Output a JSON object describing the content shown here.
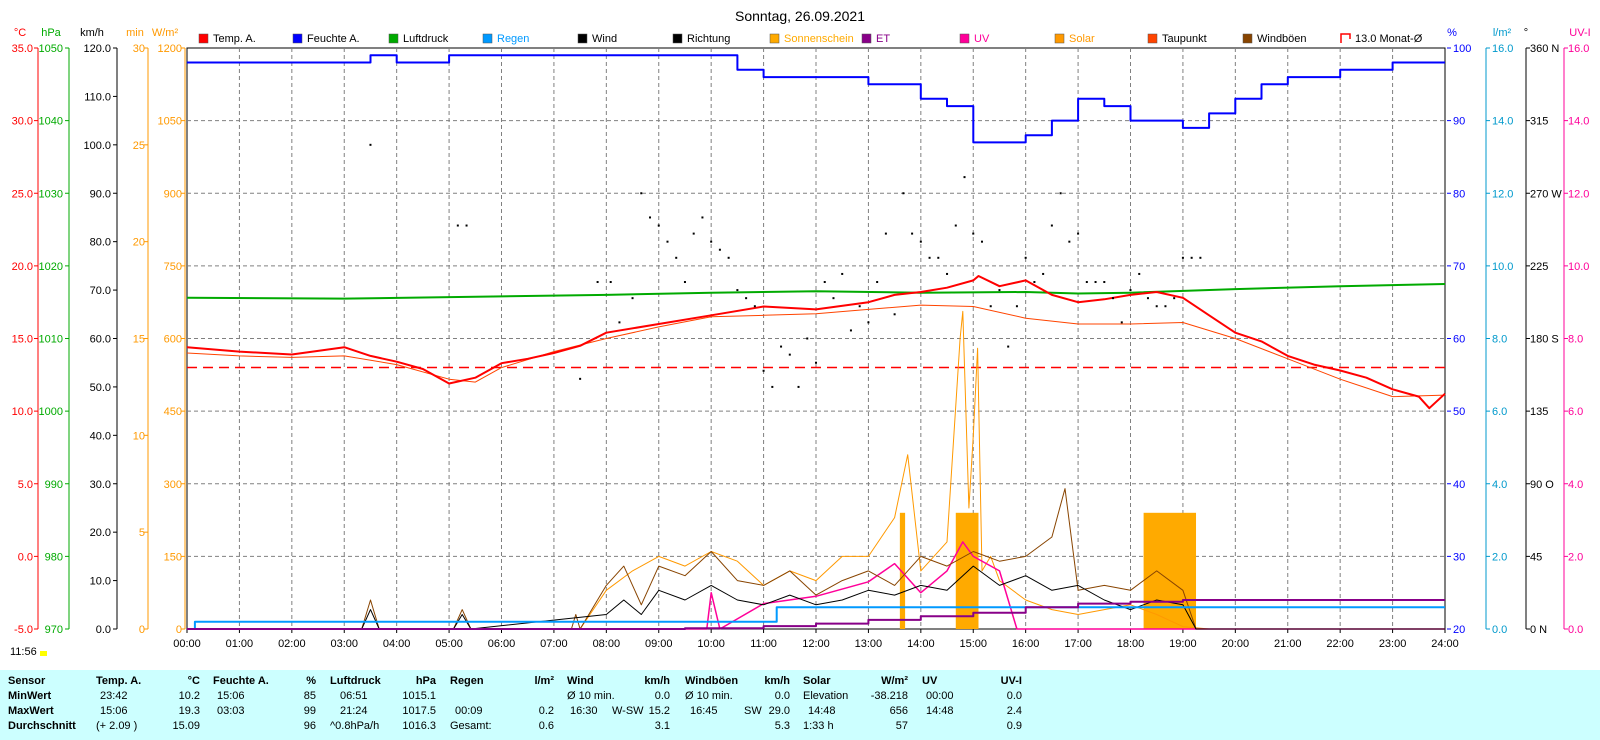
{
  "title": "Sonntag, 26.09.2021",
  "current_time": "11:56",
  "left_axes": [
    {
      "unit": "°C",
      "color": "#ff0000",
      "ticks": [
        "35.0",
        "30.0",
        "25.0",
        "20.0",
        "15.0",
        "10.0",
        "5.0",
        "0.0",
        "-5.0"
      ]
    },
    {
      "unit": "hPa",
      "color": "#00aa00",
      "ticks": [
        "1050",
        "1040",
        "1030",
        "1020",
        "1010",
        "1000",
        "990",
        "980",
        "970"
      ]
    },
    {
      "unit": "km/h",
      "color": "#000000",
      "ticks": [
        "120.0",
        "110.0",
        "100.0",
        "90.0",
        "80.0",
        "70.0",
        "60.0",
        "50.0",
        "40.0",
        "30.0",
        "20.0",
        "10.0",
        "0.0"
      ]
    },
    {
      "unit": "min",
      "color": "#ff9900",
      "ticks": [
        "30",
        "25",
        "20",
        "15",
        "10",
        "5",
        "0"
      ]
    },
    {
      "unit": "W/m²",
      "color": "#ff9900",
      "ticks": [
        "1200",
        "1050",
        "900",
        "750",
        "600",
        "450",
        "300",
        "150",
        "0"
      ]
    }
  ],
  "right_axes": [
    {
      "unit": "%",
      "color": "#0000ff",
      "ticks": [
        "100",
        "90",
        "80",
        "70",
        "60",
        "50",
        "40",
        "30",
        "20"
      ]
    },
    {
      "unit": "l/m²",
      "color": "#0099cc",
      "ticks": [
        "16.0",
        "14.0",
        "12.0",
        "10.0",
        "8.0",
        "6.0",
        "4.0",
        "2.0",
        "0.0"
      ]
    },
    {
      "unit": "°",
      "color": "#000000",
      "ticks": [
        "360 N",
        "315",
        "270 W",
        "225",
        "180 S",
        "135",
        "90 O",
        "45",
        "0 N"
      ]
    },
    {
      "unit": "UV-I",
      "color": "#ff0099",
      "ticks": [
        "16.0",
        "14.0",
        "12.0",
        "10.0",
        "8.0",
        "6.0",
        "4.0",
        "2.0",
        "0.0"
      ]
    }
  ],
  "x_ticks": [
    "00:00",
    "01:00",
    "02:00",
    "03:00",
    "04:00",
    "05:00",
    "06:00",
    "07:00",
    "08:00",
    "09:00",
    "10:00",
    "11:00",
    "12:00",
    "13:00",
    "14:00",
    "15:00",
    "16:00",
    "17:00",
    "18:00",
    "19:00",
    "20:00",
    "21:00",
    "22:00",
    "23:00",
    "24:00"
  ],
  "legend": [
    {
      "label": "Temp. A.",
      "color": "#ff0000",
      "shape": "box"
    },
    {
      "label": "Feuchte A.",
      "color": "#0000ff",
      "shape": "box"
    },
    {
      "label": "Luftdruck",
      "color": "#00aa00",
      "shape": "box"
    },
    {
      "label": "Regen",
      "color": "#0099ff",
      "shape": "box"
    },
    {
      "label": "Wind",
      "color": "#000000",
      "shape": "box"
    },
    {
      "label": "Richtung",
      "color": "#000000",
      "shape": "box"
    },
    {
      "label": "Sonnenschein",
      "color": "#ffaa00",
      "shape": "box"
    },
    {
      "label": "ET",
      "color": "#880088",
      "shape": "box"
    },
    {
      "label": "UV",
      "color": "#ff0099",
      "shape": "box"
    },
    {
      "label": "Solar",
      "color": "#ff9900",
      "shape": "box"
    },
    {
      "label": "Taupunkt",
      "color": "#ff4400",
      "shape": "box"
    },
    {
      "label": "Windböen",
      "color": "#884400",
      "shape": "box"
    },
    {
      "label": "13.0 Monat-Ø",
      "color": "#ff0000",
      "shape": "open"
    }
  ],
  "chart_data": {
    "type": "line",
    "title": "Sonntag, 26.09.2021",
    "x_range": [
      "00:00",
      "24:00"
    ],
    "temperature_monthly_avg": 13.0,
    "series": [
      {
        "name": "Temp. A.",
        "unit": "°C",
        "color": "#ff0000",
        "x": [
          "00:00",
          "01:00",
          "02:00",
          "03:00",
          "03:30",
          "04:00",
          "04:30",
          "05:00",
          "05:30",
          "06:00",
          "06:30",
          "07:00",
          "07:30",
          "08:00",
          "09:00",
          "10:00",
          "11:00",
          "12:00",
          "13:00",
          "13:30",
          "14:00",
          "14:30",
          "15:00",
          "15:06",
          "15:30",
          "16:00",
          "16:30",
          "17:00",
          "17:30",
          "18:00",
          "18:30",
          "19:00",
          "19:30",
          "20:00",
          "20:30",
          "21:00",
          "21:30",
          "22:00",
          "22:30",
          "23:00",
          "23:30",
          "23:42",
          "24:00"
        ],
        "y": [
          14.4,
          14.1,
          13.9,
          14.4,
          13.8,
          13.4,
          12.9,
          11.9,
          12.3,
          13.3,
          13.6,
          14.0,
          14.5,
          15.4,
          16.0,
          16.6,
          17.2,
          17.0,
          17.5,
          18.0,
          18.2,
          18.5,
          19.0,
          19.3,
          18.6,
          19.0,
          18.0,
          17.5,
          17.7,
          18.0,
          18.2,
          17.8,
          16.6,
          15.4,
          14.8,
          13.8,
          13.2,
          12.8,
          12.3,
          11.5,
          11.0,
          10.2,
          11.2
        ]
      },
      {
        "name": "Taupunkt",
        "unit": "°C",
        "color": "#ff4400",
        "x": [
          "00:00",
          "01:00",
          "02:00",
          "03:00",
          "04:00",
          "05:00",
          "05:30",
          "06:00",
          "07:00",
          "08:00",
          "09:00",
          "10:00",
          "11:00",
          "12:00",
          "13:00",
          "14:00",
          "15:00",
          "16:00",
          "17:00",
          "18:00",
          "19:00",
          "20:00",
          "21:00",
          "22:00",
          "23:00",
          "24:00"
        ],
        "y": [
          14.0,
          13.8,
          13.7,
          13.8,
          13.2,
          12.2,
          12.0,
          13.0,
          14.1,
          15.0,
          15.8,
          16.5,
          16.6,
          16.7,
          17.0,
          17.3,
          17.2,
          16.4,
          16.0,
          16.0,
          16.1,
          15.0,
          13.6,
          12.2,
          11.0,
          11.1
        ]
      },
      {
        "name": "Feuchte A.",
        "unit": "%",
        "color": "#0000ff",
        "x": [
          "00:00",
          "03:00",
          "03:30",
          "04:00",
          "05:00",
          "06:00",
          "07:00",
          "08:00",
          "09:00",
          "10:00",
          "10:30",
          "11:00",
          "12:00",
          "13:00",
          "14:00",
          "14:30",
          "15:00",
          "15:30",
          "16:00",
          "16:30",
          "17:00",
          "17:30",
          "18:00",
          "18:30",
          "19:00",
          "19:30",
          "20:00",
          "20:30",
          "21:00",
          "22:00",
          "23:00",
          "24:00"
        ],
        "y": [
          98,
          98,
          99,
          98,
          99,
          99,
          99,
          99,
          99,
          99,
          97,
          96,
          96,
          95,
          93,
          92,
          87,
          87,
          88,
          90,
          93,
          92,
          90,
          90,
          89,
          91,
          93,
          95,
          96,
          97,
          98,
          98
        ]
      },
      {
        "name": "Luftdruck",
        "unit": "hPa",
        "color": "#00aa00",
        "x": [
          "00:00",
          "03:00",
          "06:00",
          "08:00",
          "10:00",
          "12:00",
          "14:00",
          "16:00",
          "17:00",
          "18:00",
          "20:00",
          "22:00",
          "24:00"
        ],
        "y": [
          1015.6,
          1015.5,
          1015.8,
          1016.0,
          1016.3,
          1016.5,
          1016.3,
          1016.4,
          1016.2,
          1016.3,
          1016.8,
          1017.2,
          1017.5
        ]
      },
      {
        "name": "Wind",
        "unit": "km/h",
        "color": "#000000",
        "x": [
          "00:00",
          "03:20",
          "03:30",
          "03:40",
          "05:05",
          "05:15",
          "05:25",
          "08:00",
          "08:20",
          "08:40",
          "09:00",
          "09:30",
          "10:00",
          "10:30",
          "11:00",
          "11:30",
          "12:00",
          "12:30",
          "13:00",
          "13:30",
          "14:00",
          "14:30",
          "15:00",
          "15:30",
          "16:00",
          "16:30",
          "17:00",
          "17:30",
          "18:00",
          "18:30",
          "19:00",
          "19:15",
          "19:30",
          "24:00"
        ],
        "y": [
          0,
          0,
          4,
          0,
          0,
          3,
          0,
          3,
          6,
          3,
          8,
          6,
          9,
          6,
          5,
          7,
          5,
          6,
          8,
          7,
          9,
          8,
          13,
          9,
          11,
          8,
          9,
          6,
          4,
          6,
          5,
          0,
          0,
          0
        ]
      },
      {
        "name": "Windböen",
        "unit": "km/h",
        "color": "#884400",
        "x": [
          "00:00",
          "03:20",
          "03:30",
          "03:40",
          "05:05",
          "05:15",
          "05:25",
          "07:20",
          "07:25",
          "07:30",
          "08:00",
          "08:20",
          "08:40",
          "09:00",
          "09:30",
          "10:00",
          "10:30",
          "11:00",
          "11:30",
          "12:00",
          "12:30",
          "13:00",
          "13:30",
          "14:00",
          "14:30",
          "15:00",
          "15:30",
          "16:00",
          "16:30",
          "16:45",
          "17:00",
          "17:30",
          "18:00",
          "18:30",
          "19:00",
          "19:15",
          "19:30",
          "24:00"
        ],
        "y": [
          0,
          0,
          6,
          0,
          0,
          4,
          0,
          0,
          3,
          0,
          9,
          13,
          5,
          13,
          11,
          16,
          10,
          9,
          12,
          7,
          10,
          12,
          9,
          15,
          13,
          16,
          14,
          15,
          19,
          29,
          8,
          9,
          8,
          12,
          8,
          0,
          0,
          0
        ]
      },
      {
        "name": "Solar",
        "unit": "W/m²",
        "color": "#ff9900",
        "x": [
          "07:30",
          "08:00",
          "08:30",
          "09:00",
          "09:30",
          "10:00",
          "10:30",
          "11:00",
          "11:30",
          "12:00",
          "12:30",
          "13:00",
          "13:30",
          "13:45",
          "14:00",
          "14:30",
          "14:45",
          "14:48",
          "14:55",
          "15:00",
          "15:05",
          "15:10",
          "15:20",
          "15:30",
          "16:00",
          "16:30",
          "17:00",
          "17:30",
          "18:00",
          "18:30",
          "19:00",
          "19:30"
        ],
        "y": [
          0,
          80,
          120,
          150,
          130,
          160,
          140,
          90,
          120,
          100,
          150,
          150,
          230,
          360,
          120,
          180,
          600,
          656,
          250,
          400,
          580,
          120,
          150,
          100,
          60,
          40,
          30,
          40,
          50,
          30,
          5,
          0
        ]
      },
      {
        "name": "UV",
        "unit": "UV-I",
        "color": "#ff0099",
        "x": [
          "00:00",
          "09:55",
          "10:00",
          "10:10",
          "11:00",
          "12:00",
          "13:00",
          "13:30",
          "14:00",
          "14:30",
          "14:48",
          "15:00",
          "15:30",
          "15:50",
          "24:00"
        ],
        "y": [
          0,
          0,
          1.0,
          0,
          0.7,
          0.9,
          1.3,
          1.8,
          1.0,
          1.6,
          2.4,
          2.0,
          1.6,
          0,
          0
        ]
      },
      {
        "name": "Regen",
        "unit": "l/m²",
        "color": "#0099ff",
        "x": [
          "00:00",
          "00:09",
          "08:40",
          "11:10",
          "11:15",
          "19:00",
          "24:00"
        ],
        "y": [
          0,
          0.2,
          0.2,
          0.2,
          0.6,
          0.6,
          0.6
        ]
      },
      {
        "name": "ET",
        "unit": "l/m²",
        "color": "#880088",
        "x": [
          "00:00",
          "09:30",
          "11:00",
          "12:00",
          "13:00",
          "14:00",
          "15:00",
          "16:00",
          "17:00",
          "18:00",
          "19:00",
          "24:00"
        ],
        "y": [
          0,
          0.02,
          0.08,
          0.15,
          0.25,
          0.35,
          0.45,
          0.6,
          0.7,
          0.75,
          0.8,
          0.8
        ]
      }
    ],
    "richtung_deg": {
      "x": [
        "03:30",
        "05:10",
        "05:20",
        "07:30",
        "07:50",
        "08:05",
        "08:15",
        "08:30",
        "08:40",
        "08:50",
        "09:00",
        "09:10",
        "09:20",
        "09:30",
        "09:40",
        "09:50",
        "10:00",
        "10:10",
        "10:20",
        "10:30",
        "10:40",
        "10:50",
        "11:00",
        "11:10",
        "11:20",
        "11:30",
        "11:40",
        "11:50",
        "12:00",
        "12:10",
        "12:20",
        "12:30",
        "12:40",
        "12:50",
        "13:00",
        "13:10",
        "13:20",
        "13:30",
        "13:40",
        "13:50",
        "14:00",
        "14:10",
        "14:20",
        "14:30",
        "14:40",
        "14:50",
        "15:00",
        "15:10",
        "15:20",
        "15:30",
        "15:40",
        "15:50",
        "16:00",
        "16:10",
        "16:20",
        "16:30",
        "16:40",
        "16:50",
        "17:00",
        "17:10",
        "17:20",
        "17:30",
        "17:40",
        "17:50",
        "18:00",
        "18:10",
        "18:20",
        "18:30",
        "18:40",
        "18:50",
        "19:00",
        "19:10",
        "19:20"
      ],
      "y": [
        300,
        250,
        250,
        155,
        215,
        215,
        190,
        205,
        270,
        255,
        250,
        240,
        230,
        215,
        245,
        255,
        240,
        235,
        230,
        210,
        205,
        200,
        160,
        150,
        175,
        170,
        150,
        180,
        165,
        215,
        205,
        220,
        185,
        200,
        190,
        215,
        245,
        195,
        270,
        245,
        240,
        230,
        230,
        220,
        250,
        280,
        245,
        240,
        200,
        210,
        175,
        200,
        230,
        215,
        220,
        250,
        270,
        240,
        245,
        215,
        215,
        215,
        205,
        190,
        210,
        220,
        205,
        200,
        200,
        205,
        230,
        230,
        230
      ]
    },
    "sunshine_blocks": [
      {
        "start": "13:36",
        "end": "13:42"
      },
      {
        "start": "14:40",
        "end": "15:06"
      },
      {
        "start": "18:15",
        "end": "19:15"
      }
    ]
  },
  "stats": {
    "headers": {
      "sensor": "Sensor",
      "temp": "Temp. A.",
      "temp_unit": "°C",
      "hum": "Feuchte A.",
      "hum_unit": "%",
      "press": "Luftdruck",
      "press_unit": "hPa",
      "rain": "Regen",
      "rain_unit": "l/m²",
      "wind": "Wind",
      "wind_unit": "km/h",
      "gust": "Windböen",
      "gust_unit": "km/h",
      "solar": "Solar",
      "solar_unit": "W/m²",
      "uv": "UV",
      "uv_unit": "UV-I"
    },
    "row_labels": {
      "min": "MinWert",
      "max": "MaxWert",
      "avg": "Durchschnitt"
    },
    "min": {
      "temp_time": "23:42",
      "temp_val": "10.2",
      "hum_time": "15:06",
      "hum_val": "85",
      "press_time": "06:51",
      "press_val": "1015.1",
      "rain_time": "",
      "rain_val": "",
      "wind_label": "Ø 10 min.",
      "wind_val": "0.0",
      "gust_label": "Ø 10 min.",
      "gust_val": "0.0",
      "solar_label": "Elevation",
      "solar_val": "-38.218",
      "uv_time": "00:00",
      "uv_val": "0.0"
    },
    "max": {
      "temp_time": "15:06",
      "temp_val": "19.3",
      "hum_time": "03:03",
      "hum_val": "99",
      "press_time": "21:24",
      "press_val": "1017.5",
      "rain_time": "00:09",
      "rain_val": "0.2",
      "wind_time": "16:30",
      "wind_dir": "W-SW",
      "wind_val": "15.2",
      "gust_time": "16:45",
      "gust_dir": "SW",
      "gust_val": "29.0",
      "solar_time": "14:48",
      "solar_val": "656",
      "uv_time": "14:48",
      "uv_val": "2.4"
    },
    "avg": {
      "temp_note": "(+ 2.09 )",
      "temp_val": "15.09",
      "hum_val": "96",
      "press_note": "^0.8hPa/h",
      "press_val": "1016.3",
      "rain_label": "Gesamt:",
      "rain_val": "0.6",
      "wind_val": "3.1",
      "gust_val": "5.3",
      "solar_time": "1:33 h",
      "solar_val": "57",
      "uv_val": "0.9"
    }
  }
}
